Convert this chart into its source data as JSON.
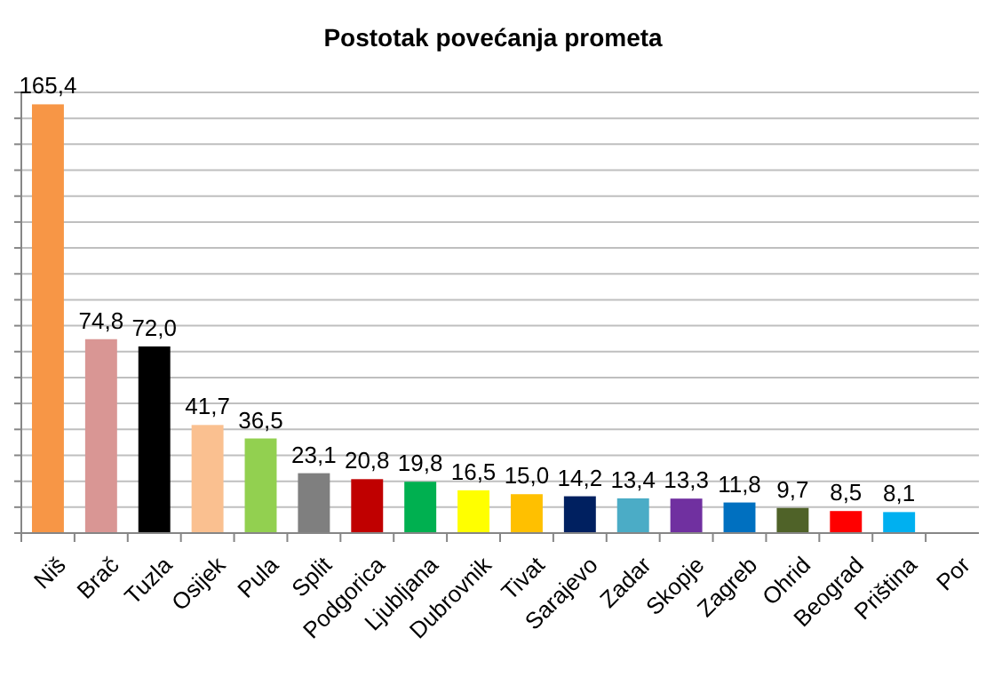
{
  "chart_data": {
    "type": "bar",
    "title": "Postotak povećanja prometa",
    "categories": [
      "Niš",
      "Brač",
      "Tuzla",
      "Osijek",
      "Pula",
      "Split",
      "Podgorica",
      "Ljubljana",
      "Dubrovnik",
      "Tivat",
      "Sarajevo",
      "Zadar",
      "Skopje",
      "Zagreb",
      "Ohrid",
      "Beograd",
      "Priština",
      "Por"
    ],
    "values": [
      165.4,
      74.8,
      72.0,
      41.7,
      36.5,
      23.1,
      20.8,
      19.8,
      16.5,
      15.0,
      14.2,
      13.4,
      13.3,
      11.8,
      9.7,
      8.5,
      8.1,
      null
    ],
    "value_labels": [
      "165,4",
      "74,8",
      "72,0",
      "41,7",
      "36,5",
      "23,1",
      "20,8",
      "19,8",
      "16,5",
      "15,0",
      "14,2",
      "13,4",
      "13,3",
      "11,8",
      "9,7",
      "8,5",
      "8,1",
      null
    ],
    "colors": [
      "#f79646",
      "#d99694",
      "#000000",
      "#fac090",
      "#92d050",
      "#7f7f7f",
      "#c00000",
      "#00b050",
      "#ffff00",
      "#ffc000",
      "#002060",
      "#4bacc6",
      "#7030a0",
      "#0070c0",
      "#4f6228",
      "#ff0000",
      "#00b0f0",
      null
    ],
    "ylim": [
      0,
      170
    ],
    "yticks": [
      {
        "value": 0,
        "label": null
      },
      {
        "value": 10,
        "label": null
      },
      {
        "value": 20,
        "label": null
      },
      {
        "value": 30,
        "label": null
      },
      {
        "value": 40,
        "label": null
      },
      {
        "value": 50,
        "label": null
      },
      {
        "value": 60,
        "label": null
      },
      {
        "value": 70,
        "label": null
      },
      {
        "value": 80,
        "label": null
      },
      {
        "value": 90,
        "label": null
      },
      {
        "value": 100,
        "label": null
      },
      {
        "value": 110,
        "label": null
      },
      {
        "value": 120,
        "label": null
      },
      {
        "value": 130,
        "label": null
      },
      {
        "value": 140,
        "label": null
      },
      {
        "value": 150,
        "label": null
      },
      {
        "value": 160,
        "label": null
      },
      {
        "value": 170,
        "label": null
      }
    ],
    "grid": true,
    "tick_labels": "x"
  }
}
